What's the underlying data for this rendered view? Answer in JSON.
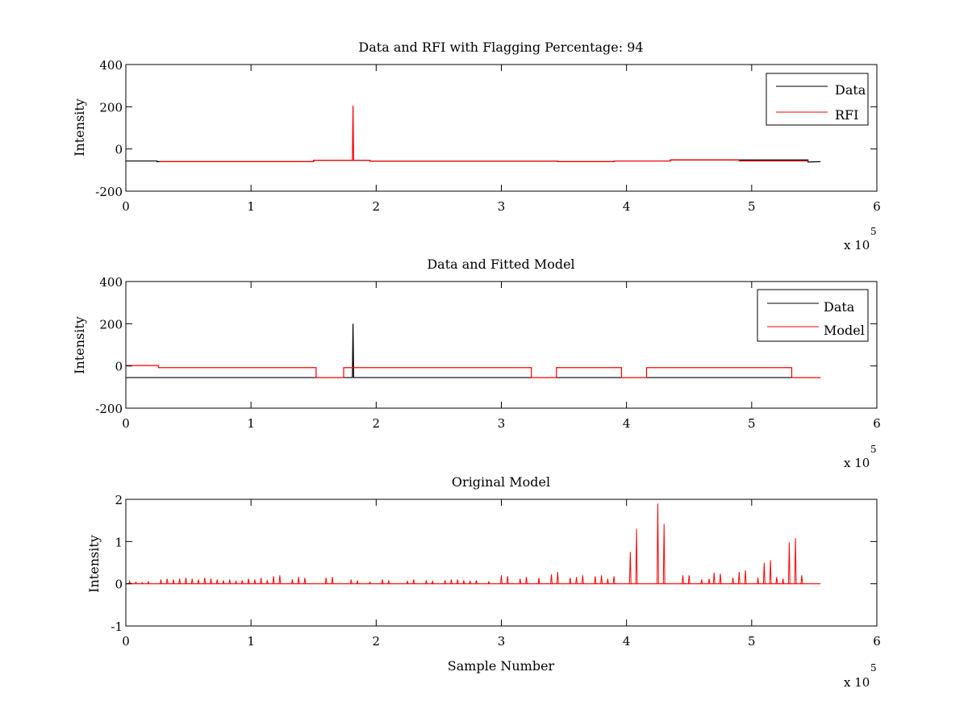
{
  "chart_data": [
    {
      "type": "line",
      "title": "Data and RFI with Flagging Percentage: 94",
      "xlabel": "",
      "ylabel": "Intensity",
      "xlim": [
        0,
        600000
      ],
      "ylim": [
        -200,
        400
      ],
      "xticks": [
        0,
        100000,
        200000,
        300000,
        400000,
        500000,
        600000
      ],
      "xtick_labels": [
        "0",
        "1",
        "2",
        "3",
        "4",
        "5",
        "6"
      ],
      "yticks": [
        -200,
        0,
        200,
        400
      ],
      "ytick_labels": [
        "-200",
        "0",
        "200",
        "400"
      ],
      "x_exponent_label": "x 10",
      "x_exponent": "5",
      "legend": {
        "position": "top-right",
        "entries": [
          {
            "name": "Data",
            "color": "#000000"
          },
          {
            "name": "RFI",
            "color": "#ff0000"
          }
        ]
      },
      "series": [
        {
          "name": "Data",
          "color": "#000000",
          "x": [
            0,
            25000,
            25000,
            150000,
            150000,
            195000,
            195000,
            345000,
            345000,
            390000,
            390000,
            435000,
            435000,
            545000,
            545000,
            555000
          ],
          "y": [
            -57,
            -57,
            -60,
            -60,
            -54,
            -54,
            -58,
            -58,
            -60,
            -60,
            -57,
            -57,
            -52,
            -52,
            -62,
            -60
          ]
        },
        {
          "name": "RFI",
          "color": "#ff0000",
          "x": [
            27000,
            150000,
            150000,
            180000,
            181000,
            181500,
            182000,
            195000,
            195000,
            345000,
            345000,
            390000,
            390000,
            435000,
            435000,
            490000,
            490000,
            545000
          ],
          "y": [
            -60,
            -60,
            -54,
            -54,
            -54,
            205,
            -54,
            -54,
            -58,
            -58,
            -60,
            -60,
            -57,
            -57,
            -52,
            -52,
            -57,
            -57
          ]
        }
      ]
    },
    {
      "type": "line",
      "title": "Data and Fitted Model",
      "xlabel": "",
      "ylabel": "Intensity",
      "xlim": [
        0,
        600000
      ],
      "ylim": [
        -200,
        400
      ],
      "xticks": [
        0,
        100000,
        200000,
        300000,
        400000,
        500000,
        600000
      ],
      "xtick_labels": [
        "0",
        "1",
        "2",
        "3",
        "4",
        "5",
        "6"
      ],
      "yticks": [
        -200,
        0,
        200,
        400
      ],
      "ytick_labels": [
        "-200",
        "0",
        "200",
        "400"
      ],
      "x_exponent_label": "x 10",
      "x_exponent": "5",
      "legend": {
        "position": "top-right",
        "entries": [
          {
            "name": "Data",
            "color": "#000000"
          },
          {
            "name": "Model",
            "color": "#ff0000"
          }
        ]
      },
      "series": [
        {
          "name": "Data",
          "color": "#000000",
          "x": [
            0,
            180000,
            181000,
            181500,
            182000,
            555000
          ],
          "y": [
            -55,
            -55,
            -55,
            200,
            -55,
            -55
          ]
        },
        {
          "name": "Model",
          "color": "#ff0000",
          "x": [
            0,
            26000,
            26000,
            152000,
            152000,
            174000,
            174000,
            324000,
            324000,
            344000,
            344000,
            396000,
            396000,
            416000,
            416000,
            532000,
            532000,
            555000
          ],
          "y": [
            2,
            2,
            -8,
            -8,
            -55,
            -55,
            -8,
            -8,
            -55,
            -55,
            -8,
            -8,
            -55,
            -55,
            -8,
            -8,
            -55,
            -55
          ]
        }
      ]
    },
    {
      "type": "line",
      "title": "Original Model",
      "xlabel": "Sample Number",
      "ylabel": "Intensity",
      "xlim": [
        0,
        600000
      ],
      "ylim": [
        -1,
        2
      ],
      "xticks": [
        0,
        100000,
        200000,
        300000,
        400000,
        500000,
        600000
      ],
      "xtick_labels": [
        "0",
        "1",
        "2",
        "3",
        "4",
        "5",
        "6"
      ],
      "yticks": [
        -1,
        0,
        1,
        2
      ],
      "ytick_labels": [
        "-1",
        "0",
        "1",
        "2"
      ],
      "x_exponent_label": "x 10",
      "x_exponent": "5",
      "baseline": 0,
      "x_end": 555000,
      "series": [
        {
          "name": "",
          "color": "#ff0000",
          "spikes_x": [
            3000,
            8000,
            13000,
            18000,
            28000,
            33000,
            38000,
            43000,
            48000,
            53000,
            58000,
            63000,
            68000,
            73000,
            78000,
            83000,
            88000,
            93000,
            98000,
            103000,
            108000,
            113000,
            118000,
            123000,
            133000,
            138000,
            143000,
            160000,
            165000,
            180000,
            185000,
            195000,
            205000,
            210000,
            225000,
            230000,
            240000,
            245000,
            255000,
            260000,
            265000,
            270000,
            275000,
            280000,
            290000,
            300000,
            305000,
            315000,
            320000,
            330000,
            340000,
            345000,
            355000,
            360000,
            365000,
            375000,
            380000,
            385000,
            390000,
            403000,
            408000,
            425000,
            430000,
            445000,
            450000,
            460000,
            466000,
            470000,
            475000,
            485000,
            490000,
            495000,
            505000,
            510000,
            515000,
            520000,
            525000,
            530000,
            535000,
            540000
          ],
          "spikes_y": [
            0.06,
            0.04,
            0.03,
            0.05,
            0.1,
            0.12,
            0.1,
            0.12,
            0.14,
            0.12,
            0.1,
            0.14,
            0.12,
            0.1,
            0.08,
            0.1,
            0.06,
            0.08,
            0.12,
            0.1,
            0.14,
            0.08,
            0.18,
            0.2,
            0.1,
            0.16,
            0.14,
            0.14,
            0.16,
            0.1,
            0.08,
            0.04,
            0.1,
            0.08,
            0.06,
            0.1,
            0.08,
            0.06,
            0.08,
            0.1,
            0.1,
            0.08,
            0.06,
            0.08,
            0.05,
            0.2,
            0.18,
            0.12,
            0.16,
            0.14,
            0.22,
            0.28,
            0.14,
            0.16,
            0.2,
            0.18,
            0.2,
            0.12,
            0.18,
            0.75,
            1.3,
            1.9,
            1.42,
            0.2,
            0.2,
            0.1,
            0.12,
            0.26,
            0.24,
            0.14,
            0.28,
            0.32,
            0.14,
            0.5,
            0.56,
            0.16,
            0.12,
            0.98,
            1.08,
            0.2
          ]
        }
      ]
    }
  ]
}
